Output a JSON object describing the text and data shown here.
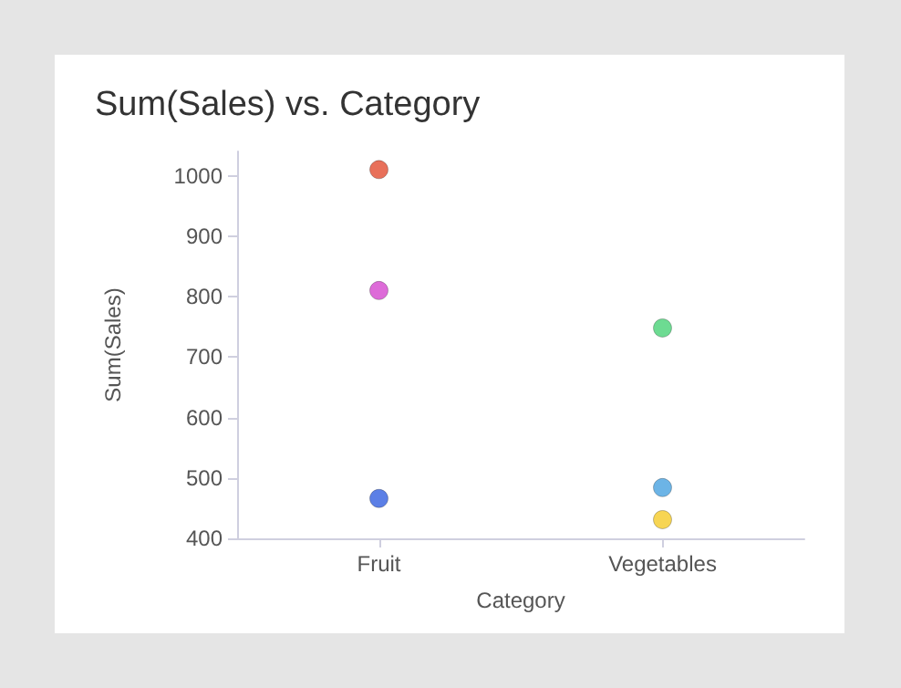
{
  "chart_data": {
    "type": "scatter",
    "title": "Sum(Sales) vs. Category",
    "xlabel": "Category",
    "ylabel": "Sum(Sales)",
    "categories": [
      "Fruit",
      "Vegetables"
    ],
    "series": [
      {
        "color": "#e8705a",
        "values": [
          1010,
          null
        ]
      },
      {
        "color": "#dd6bd8",
        "values": [
          810,
          null
        ]
      },
      {
        "color": "#5b7fe6",
        "values": [
          466,
          null
        ]
      },
      {
        "color": "#6ddb92",
        "values": [
          null,
          748
        ]
      },
      {
        "color": "#6cb4e6",
        "values": [
          null,
          484
        ]
      },
      {
        "color": "#f7d553",
        "values": [
          null,
          431
        ]
      }
    ],
    "ylim": [
      400,
      1040
    ],
    "yticks": [
      400,
      500,
      600,
      700,
      800,
      900,
      1000
    ],
    "grid": false,
    "marker": "circle"
  }
}
